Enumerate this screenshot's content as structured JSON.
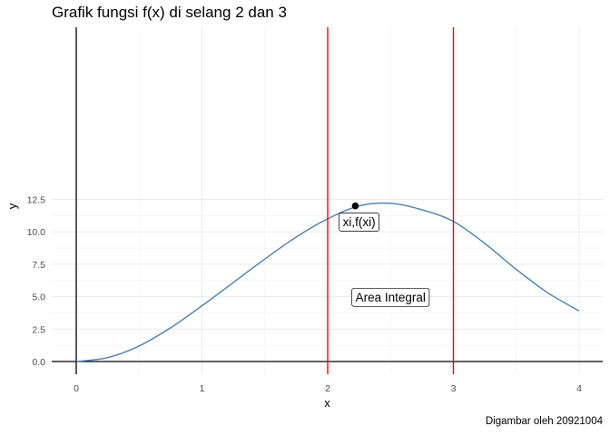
{
  "chart_data": {
    "type": "line",
    "title": "Grafik fungsi f(x) di selang 2 dan 3",
    "caption": "Digambar oleh 20921004",
    "xlabel": "x",
    "ylabel": "y",
    "xlim": [
      0,
      4
    ],
    "ylim": [
      0,
      12.5
    ],
    "x_ticks": [
      0,
      1,
      2,
      3,
      4
    ],
    "y_ticks": [
      0,
      2.5,
      5,
      7.5,
      10,
      12.5
    ],
    "x_tick_labels": [
      "0",
      "1",
      "2",
      "3",
      "4"
    ],
    "y_tick_labels": [
      "0.0",
      "2.5",
      "5.0",
      "7.5",
      "10.0",
      "12.5"
    ],
    "grid": true,
    "series": [
      {
        "color": "#4682B4",
        "x": [
          0,
          0.25,
          0.5,
          0.75,
          1.0,
          1.25,
          1.5,
          1.75,
          2.0,
          2.25,
          2.5,
          2.75,
          3.0,
          3.25,
          3.5,
          3.75,
          4.0
        ],
        "y": [
          0,
          0.3,
          1.2,
          2.6,
          4.3,
          6.1,
          7.9,
          9.6,
          11.0,
          12.0,
          12.2,
          11.7,
          10.8,
          9.1,
          7.1,
          5.3,
          3.9
        ]
      }
    ],
    "vlines": [
      {
        "x": 2,
        "color": "#ff0000"
      },
      {
        "x": 3,
        "color": "#ff0000"
      }
    ],
    "points": [
      {
        "x": 2.22,
        "y": 12.0,
        "color": "#000000"
      }
    ],
    "annotations": [
      {
        "text": "xi,f(xi)",
        "x": 2.25,
        "y": 10.75
      },
      {
        "text": "Area Integral",
        "x": 2.5,
        "y": 4.95
      }
    ]
  }
}
